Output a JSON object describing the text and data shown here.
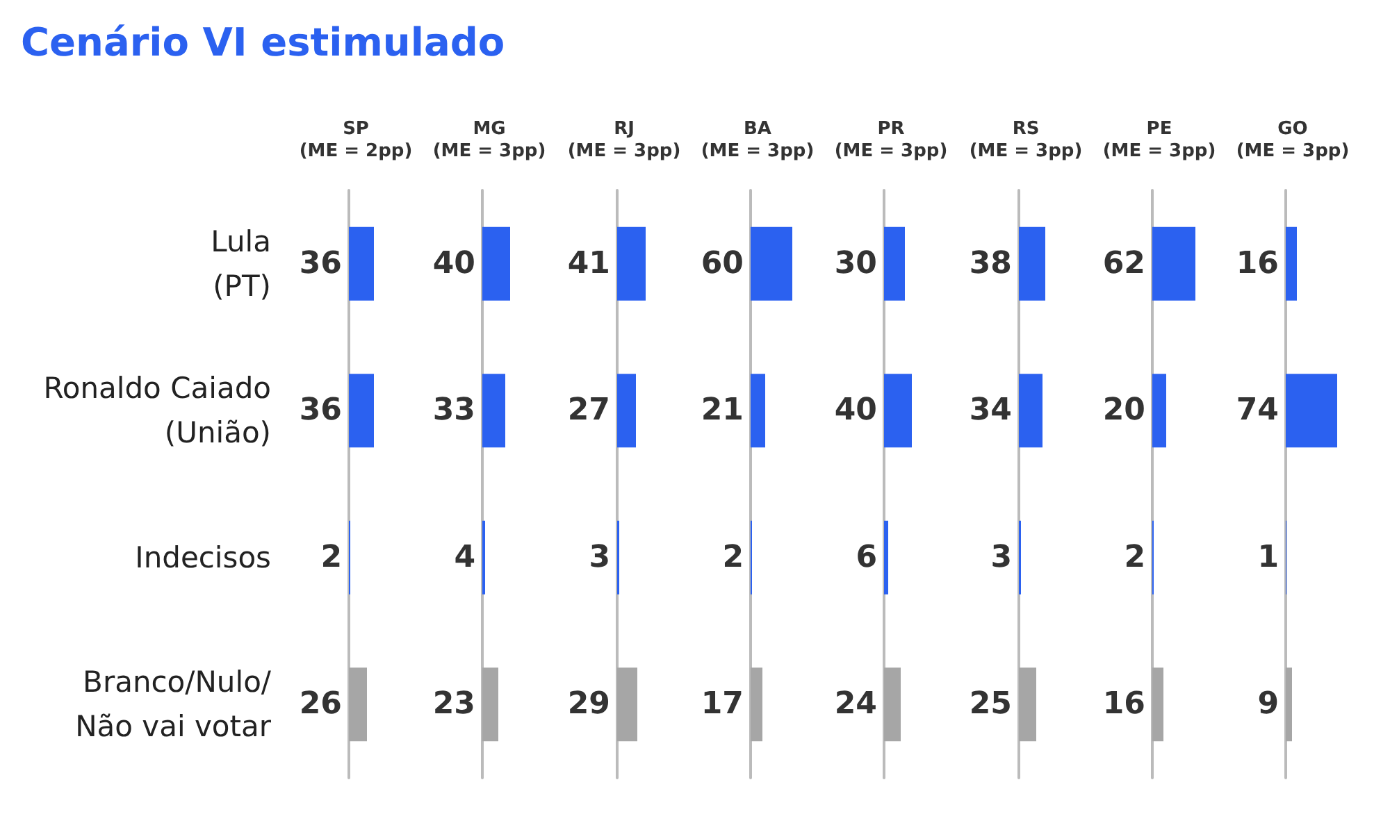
{
  "chart_data": [
    {
      "type": "bar",
      "orientation": "horizontal",
      "title": "Cenário VI estimulado",
      "subtitle": "SP\n(ME = 2pp)",
      "categories": [
        "Lula\n(PT)",
        "Ronaldo Caiado\n(União)",
        "Indecisos",
        "Branco/Nulo/\nNão vai votar"
      ],
      "values": [
        36,
        36,
        2,
        26
      ],
      "colors": [
        "#2b61f0",
        "#2b61f0",
        "#2b61f0",
        "#a6a6a6"
      ],
      "data_labels": true,
      "tick_labels": "y"
    },
    {
      "type": "bar",
      "orientation": "horizontal",
      "subtitle": "MG\n(ME = 3pp)",
      "values": [
        40,
        33,
        4,
        23
      ],
      "colors": [
        "#2b61f0",
        "#2b61f0",
        "#2b61f0",
        "#a6a6a6"
      ],
      "data_labels": true,
      "tick_labels": false
    },
    {
      "type": "bar",
      "orientation": "horizontal",
      "subtitle": "RJ\n(ME = 3pp)",
      "values": [
        41,
        27,
        3,
        29
      ],
      "colors": [
        "#2b61f0",
        "#2b61f0",
        "#2b61f0",
        "#a6a6a6"
      ],
      "data_labels": true,
      "tick_labels": false
    },
    {
      "type": "bar",
      "orientation": "horizontal",
      "subtitle": "BA\n(ME = 3pp)",
      "values": [
        60,
        21,
        2,
        17
      ],
      "colors": [
        "#2b61f0",
        "#2b61f0",
        "#2b61f0",
        "#a6a6a6"
      ],
      "data_labels": true,
      "tick_labels": false
    },
    {
      "type": "bar",
      "orientation": "horizontal",
      "subtitle": "PR\n(ME = 3pp)",
      "values": [
        30,
        40,
        6,
        24
      ],
      "colors": [
        "#2b61f0",
        "#2b61f0",
        "#2b61f0",
        "#a6a6a6"
      ],
      "data_labels": true,
      "tick_labels": false
    },
    {
      "type": "bar",
      "orientation": "horizontal",
      "subtitle": "RS\n(ME = 3pp)",
      "values": [
        38,
        34,
        3,
        25
      ],
      "colors": [
        "#2b61f0",
        "#2b61f0",
        "#2b61f0",
        "#a6a6a6"
      ],
      "data_labels": true,
      "tick_labels": false
    },
    {
      "type": "bar",
      "orientation": "horizontal",
      "subtitle": "PE\n(ME = 3pp)",
      "values": [
        62,
        20,
        2,
        16
      ],
      "colors": [
        "#2b61f0",
        "#2b61f0",
        "#2b61f0",
        "#a6a6a6"
      ],
      "data_labels": true,
      "tick_labels": false
    },
    {
      "type": "bar",
      "orientation": "horizontal",
      "subtitle": "GO\n(ME = 3pp)",
      "values": [
        16,
        74,
        1,
        9
      ],
      "colors": [
        "#2b61f0",
        "#2b61f0",
        "#2b61f0",
        "#a6a6a6"
      ],
      "data_labels": true,
      "tick_labels": false
    }
  ]
}
